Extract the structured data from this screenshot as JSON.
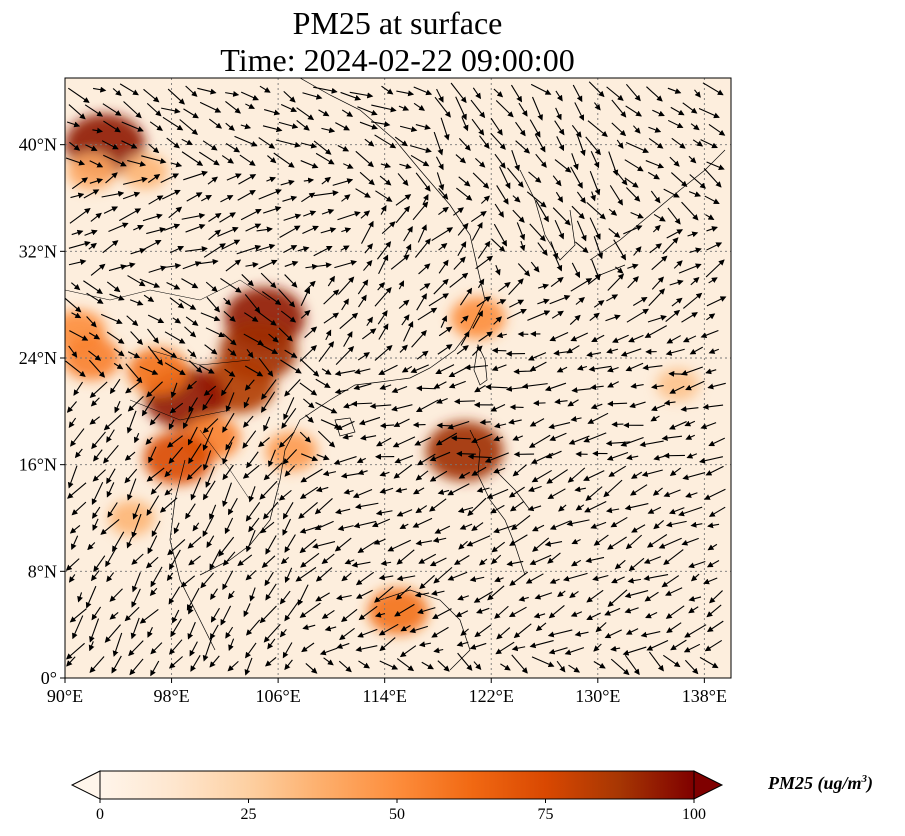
{
  "title": {
    "line1": "PM25 at surface",
    "line2": "Time: 2024-02-22 09:00:00"
  },
  "map": {
    "lon_range": [
      90,
      140
    ],
    "lat_range": [
      0,
      45
    ],
    "lon_ticks": [
      {
        "value": 90,
        "label": "90°E"
      },
      {
        "value": 98,
        "label": "98°E"
      },
      {
        "value": 106,
        "label": "106°E"
      },
      {
        "value": 114,
        "label": "114°E"
      },
      {
        "value": 122,
        "label": "122°E"
      },
      {
        "value": 130,
        "label": "130°E"
      },
      {
        "value": 138,
        "label": "138°E"
      }
    ],
    "lat_ticks": [
      {
        "value": 0,
        "label": "0°"
      },
      {
        "value": 8,
        "label": "8°N"
      },
      {
        "value": 16,
        "label": "16°N"
      },
      {
        "value": 24,
        "label": "24°N"
      },
      {
        "value": 32,
        "label": "32°N"
      },
      {
        "value": 40,
        "label": "40°N"
      }
    ],
    "gridlines": true,
    "base_color": "#fdeedd",
    "land_outline_color": "#000000",
    "arrow_color": "#000000"
  },
  "colorbar": {
    "min": 0,
    "max": 100,
    "ticks": [
      {
        "value": 0,
        "label": "0"
      },
      {
        "value": 25,
        "label": "25"
      },
      {
        "value": 50,
        "label": "50"
      },
      {
        "value": 75,
        "label": "75"
      },
      {
        "value": 100,
        "label": "100"
      }
    ],
    "label_main": "PM25 (ug/m",
    "label_sup": "3",
    "label_close": ")",
    "extend": "both",
    "colormap": [
      "#fff5eb",
      "#fee6ce",
      "#fdd0a2",
      "#fdae6b",
      "#fd8d3c",
      "#f16913",
      "#d94801",
      "#a63603",
      "#7f0000"
    ]
  },
  "chart_data": {
    "type": "heatmap",
    "variable": "PM25",
    "units": "ug/m3",
    "xlim": [
      90,
      140
    ],
    "ylim": [
      0,
      45
    ],
    "hotspots": [
      {
        "lon": 93,
        "lat": 40,
        "value": 95
      },
      {
        "lon": 92,
        "lat": 38,
        "value": 40
      },
      {
        "lon": 96,
        "lat": 38,
        "value": 35
      },
      {
        "lon": 105,
        "lat": 27,
        "value": 95
      },
      {
        "lon": 104.5,
        "lat": 24.5,
        "value": 90
      },
      {
        "lon": 103,
        "lat": 22,
        "value": 85
      },
      {
        "lon": 99,
        "lat": 21,
        "value": 95
      },
      {
        "lon": 97,
        "lat": 23,
        "value": 60
      },
      {
        "lon": 91,
        "lat": 26,
        "value": 50
      },
      {
        "lon": 92,
        "lat": 24,
        "value": 55
      },
      {
        "lon": 101,
        "lat": 18,
        "value": 55
      },
      {
        "lon": 98.5,
        "lat": 16.5,
        "value": 75
      },
      {
        "lon": 107,
        "lat": 17,
        "value": 45
      },
      {
        "lon": 120,
        "lat": 17,
        "value": 90
      },
      {
        "lon": 121,
        "lat": 27,
        "value": 50
      },
      {
        "lon": 115,
        "lat": 5,
        "value": 60
      },
      {
        "lon": 95,
        "lat": 12,
        "value": 35
      },
      {
        "lon": 136,
        "lat": 22,
        "value": 30
      }
    ],
    "wind_regimes": [
      {
        "lon": [
          90,
          112
        ],
        "lat": [
          30,
          38
        ],
        "u": 1.0,
        "v": 0.45
      },
      {
        "lon": [
          108,
          122
        ],
        "lat": [
          24,
          36
        ],
        "u": 0.7,
        "v": 0.8
      },
      {
        "lon": [
          118,
          132
        ],
        "lat": [
          30,
          44
        ],
        "u": 0.55,
        "v": -0.8
      },
      {
        "lon": [
          122,
          140
        ],
        "lat": [
          26,
          34
        ],
        "u": 0.85,
        "v": 0.55
      },
      {
        "lon": [
          110,
          140
        ],
        "lat": [
          16,
          26
        ],
        "u": -1.0,
        "v": -0.25
      },
      {
        "lon": [
          108,
          140
        ],
        "lat": [
          2,
          16
        ],
        "u": -0.9,
        "v": -0.45
      },
      {
        "lon": [
          90,
          108
        ],
        "lat": [
          0,
          22
        ],
        "u": -0.25,
        "v": -0.35
      },
      {
        "lon": [
          90,
          120
        ],
        "lat": [
          38,
          45
        ],
        "u": 0.6,
        "v": -0.3
      }
    ]
  }
}
